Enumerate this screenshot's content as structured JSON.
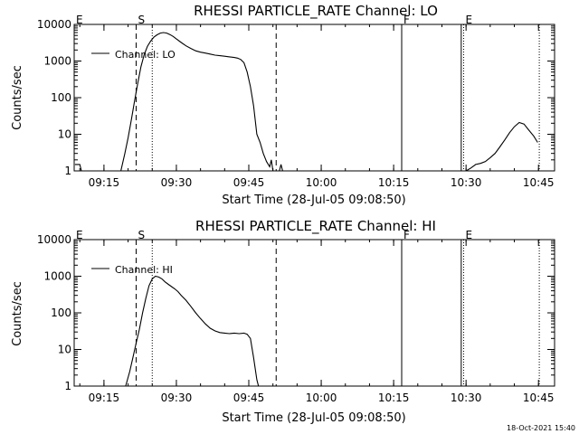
{
  "footer": {
    "timestamp": "18-Oct-2021 15:40"
  },
  "chart_data": [
    {
      "type": "line",
      "title": "RHESSI PARTICLE_RATE Channel: LO",
      "xlabel": "Start Time (28-Jul-05 09:08:50)",
      "ylabel": "Counts/sec",
      "y_scale": "log",
      "ylim": [
        1,
        10000
      ],
      "xlim": [
        "09:08:50",
        "10:48:20"
      ],
      "x_ticks": [
        "09:15",
        "09:30",
        "09:45",
        "10:00",
        "10:15",
        "10:30",
        "10:45"
      ],
      "y_ticks": [
        "1",
        "10",
        "100",
        "1000",
        "10000"
      ],
      "legend": {
        "placement": "top-left",
        "entries": [
          "Channel: LO"
        ]
      },
      "markers": [
        {
          "label": "E",
          "time": "09:08:50",
          "style": "dotted"
        },
        {
          "label": "S",
          "time": "09:21:40",
          "style": "dashed"
        },
        {
          "label": "",
          "time": "09:25:00",
          "style": "dotted"
        },
        {
          "label": "",
          "time": "09:50:40",
          "style": "dashed"
        },
        {
          "label": "F",
          "time": "10:16:40",
          "style": "solid"
        },
        {
          "label": "",
          "time": "10:29:00",
          "style": "solid"
        },
        {
          "label": "E",
          "time": "10:29:30",
          "style": "dotted"
        },
        {
          "label": "",
          "time": "10:45:10",
          "style": "dotted"
        }
      ],
      "series": [
        {
          "name": "Channel: LO",
          "segments": [
            {
              "x": [
                "09:09:00",
                "09:10:00",
                "09:10:20"
              ],
              "y": [
                1.5,
                1.5,
                1
              ]
            },
            {
              "x": [
                "09:18:30",
                "09:19:20",
                "09:20:00",
                "09:20:40",
                "09:21:20",
                "09:22:00",
                "09:22:40",
                "09:23:20",
                "09:24:00",
                "09:24:40",
                "09:25:20",
                "09:26:00",
                "09:26:40",
                "09:27:20",
                "09:28:00",
                "09:28:40",
                "09:29:20",
                "09:30:00",
                "09:31:00",
                "09:32:00",
                "09:33:00",
                "09:34:00",
                "09:35:00",
                "09:36:00",
                "09:37:00",
                "09:38:00",
                "09:39:00",
                "09:40:00",
                "09:41:00",
                "09:42:00",
                "09:42:40",
                "09:43:20",
                "09:44:00",
                "09:44:40",
                "09:45:20",
                "09:46:00",
                "09:46:40",
                "09:47:20",
                "09:48:00",
                "09:48:40",
                "09:49:20",
                "09:49:40",
                "09:50:00"
              ],
              "y": [
                1,
                3,
                8,
                25,
                80,
                250,
                700,
                1500,
                2500,
                3500,
                4500,
                5200,
                5800,
                6000,
                5800,
                5300,
                4700,
                4000,
                3200,
                2600,
                2200,
                1900,
                1750,
                1650,
                1550,
                1450,
                1400,
                1350,
                1300,
                1250,
                1200,
                1100,
                900,
                500,
                200,
                60,
                10,
                6,
                3,
                1.8,
                1.3,
                2,
                1
              ]
            },
            {
              "x": [
                "09:51:20",
                "09:51:40",
                "09:52:00"
              ],
              "y": [
                1,
                1.5,
                1
              ]
            },
            {
              "x": [
                "10:30:00",
                "10:31:00",
                "10:32:00",
                "10:33:00",
                "10:34:00",
                "10:35:00",
                "10:36:00",
                "10:37:00",
                "10:38:00",
                "10:39:00",
                "10:40:00",
                "10:41:00",
                "10:42:00",
                "10:43:00",
                "10:44:00",
                "10:44:50"
              ],
              "y": [
                1,
                1.2,
                1.5,
                1.6,
                1.8,
                2.3,
                3,
                4.5,
                7,
                11,
                16,
                21,
                19,
                13,
                9,
                6
              ]
            }
          ]
        }
      ]
    },
    {
      "type": "line",
      "title": "RHESSI PARTICLE_RATE Channel: HI",
      "xlabel": "Start Time (28-Jul-05 09:08:50)",
      "ylabel": "Counts/sec",
      "y_scale": "log",
      "ylim": [
        1,
        10000
      ],
      "xlim": [
        "09:08:50",
        "10:48:20"
      ],
      "x_ticks": [
        "09:15",
        "09:30",
        "09:45",
        "10:00",
        "10:15",
        "10:30",
        "10:45"
      ],
      "y_ticks": [
        "1",
        "10",
        "100",
        "1000",
        "10000"
      ],
      "legend": {
        "placement": "top-left",
        "entries": [
          "Channel: HI"
        ]
      },
      "markers": [
        {
          "label": "E",
          "time": "09:08:50",
          "style": "dotted"
        },
        {
          "label": "S",
          "time": "09:21:40",
          "style": "dashed"
        },
        {
          "label": "",
          "time": "09:25:00",
          "style": "dotted"
        },
        {
          "label": "",
          "time": "09:50:40",
          "style": "dashed"
        },
        {
          "label": "F",
          "time": "10:16:40",
          "style": "solid"
        },
        {
          "label": "",
          "time": "10:29:00",
          "style": "solid"
        },
        {
          "label": "E",
          "time": "10:29:30",
          "style": "dotted"
        },
        {
          "label": "",
          "time": "10:45:10",
          "style": "dotted"
        }
      ],
      "series": [
        {
          "name": "Channel: HI",
          "segments": [
            {
              "x": [
                "09:19:30",
                "09:20:20",
                "09:21:00",
                "09:21:40",
                "09:22:20",
                "09:23:00",
                "09:23:40",
                "09:24:20",
                "09:25:00",
                "09:25:40",
                "09:26:20",
                "09:27:00",
                "09:27:40",
                "09:28:20",
                "09:29:00",
                "09:29:40",
                "09:30:20",
                "09:31:00",
                "09:32:00",
                "09:33:00",
                "09:34:00",
                "09:35:00",
                "09:36:00",
                "09:37:00",
                "09:38:00",
                "09:39:00",
                "09:40:00",
                "09:41:00",
                "09:42:00",
                "09:43:00",
                "09:44:00",
                "09:44:40",
                "09:45:20",
                "09:46:00",
                "09:46:40",
                "09:47:00"
              ],
              "y": [
                1,
                2.5,
                6,
                15,
                35,
                100,
                250,
                550,
                850,
                1000,
                950,
                850,
                700,
                600,
                520,
                450,
                380,
                300,
                220,
                150,
                100,
                70,
                50,
                38,
                32,
                29,
                28,
                27,
                28,
                27,
                28,
                26,
                20,
                6,
                1.5,
                1
              ]
            }
          ]
        }
      ]
    }
  ]
}
